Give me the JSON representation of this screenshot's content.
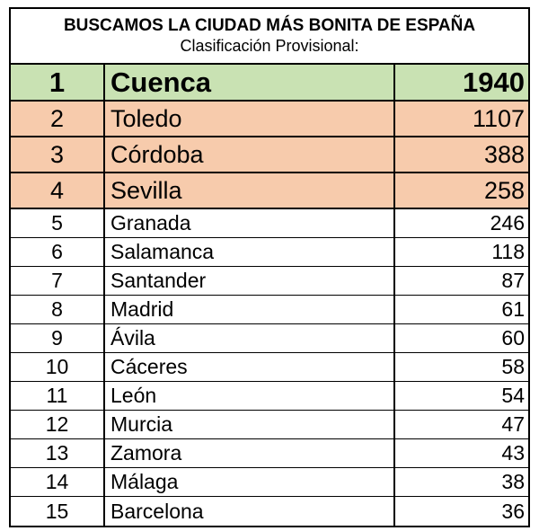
{
  "header": {
    "title": "BUSCAMOS LA CIUDAD MÁS BONITA DE ESPAÑA",
    "subtitle": "Clasificación Provisional:"
  },
  "colors": {
    "first_place_bg": "#c9e2b3",
    "podium_bg": "#f7cbac",
    "regular_bg": "#ffffff",
    "border": "#000000"
  },
  "rows": [
    {
      "rank": "1",
      "city": "Cuenca",
      "votes": "1940"
    },
    {
      "rank": "2",
      "city": "Toledo",
      "votes": "1107"
    },
    {
      "rank": "3",
      "city": "Córdoba",
      "votes": "388"
    },
    {
      "rank": "4",
      "city": "Sevilla",
      "votes": "258"
    },
    {
      "rank": "5",
      "city": "Granada",
      "votes": "246"
    },
    {
      "rank": "6",
      "city": "Salamanca",
      "votes": "118"
    },
    {
      "rank": "7",
      "city": "Santander",
      "votes": "87"
    },
    {
      "rank": "8",
      "city": "Madrid",
      "votes": "61"
    },
    {
      "rank": "9",
      "city": "Ávila",
      "votes": "60"
    },
    {
      "rank": "10",
      "city": "Cáceres",
      "votes": "58"
    },
    {
      "rank": "11",
      "city": "León",
      "votes": "54"
    },
    {
      "rank": "12",
      "city": "Murcia",
      "votes": "47"
    },
    {
      "rank": "13",
      "city": "Zamora",
      "votes": "43"
    },
    {
      "rank": "14",
      "city": "Málaga",
      "votes": "38"
    },
    {
      "rank": "15",
      "city": "Barcelona",
      "votes": "36"
    }
  ]
}
